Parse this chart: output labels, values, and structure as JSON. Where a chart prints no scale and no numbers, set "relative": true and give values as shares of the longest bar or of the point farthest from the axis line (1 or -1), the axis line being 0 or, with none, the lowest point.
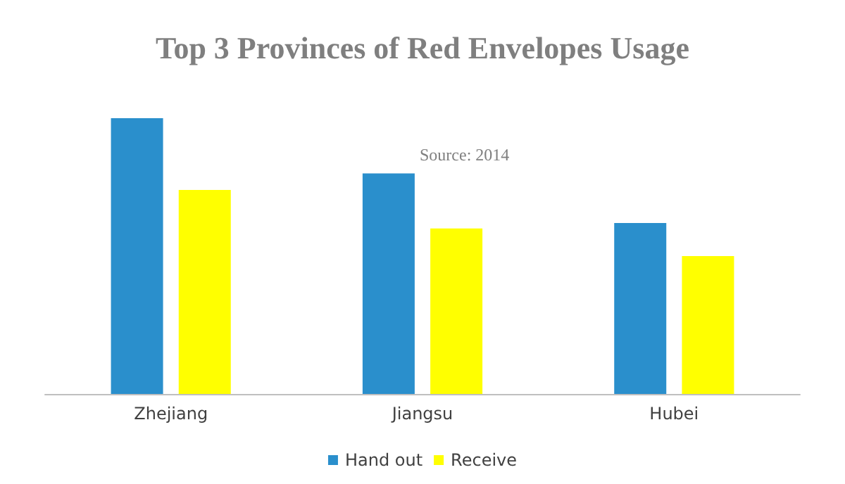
{
  "chart_data": {
    "type": "bar",
    "title": "Top 3 Provinces of Red Envelopes Usage",
    "categories": [
      "Zhejiang",
      "Jiangsu",
      "Hubei"
    ],
    "relative": true,
    "series": [
      {
        "name": "Hand out",
        "color": "#2a8fcc",
        "values": [
          1,
          0.8,
          0.62
        ]
      },
      {
        "name": "Receive",
        "color": "#ffff00",
        "values": [
          0.74,
          0.6,
          0.5
        ]
      }
    ],
    "annotations": [
      "Source: 2014"
    ],
    "legend": "bottom"
  }
}
